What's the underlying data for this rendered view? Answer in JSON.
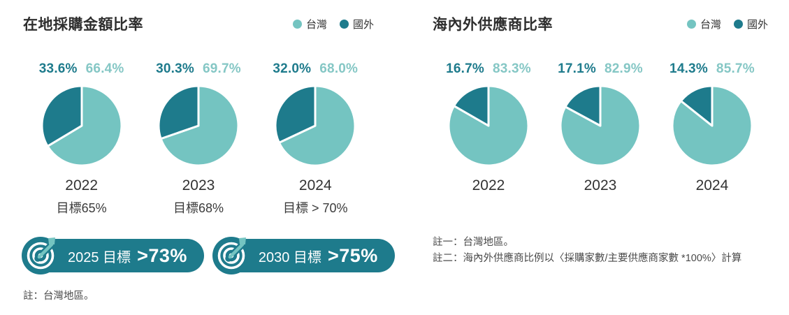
{
  "colors": {
    "taiwan": "#74c4c1",
    "foreign": "#1e7b8c",
    "taiwan_text": "#85c7c5",
    "foreign_text": "#1e7b8c",
    "badge_bg": "#1e7b8c",
    "dart": "#74c4c1",
    "pie_gap": "#ffffff"
  },
  "chart_data": [
    {
      "type": "pie",
      "title": "在地採購金額比率",
      "legend": [
        {
          "label": "台灣",
          "color": "#74c4c1"
        },
        {
          "label": "國外",
          "color": "#1e7b8c"
        }
      ],
      "legend_position": "top-right",
      "charts": [
        {
          "year": "2022",
          "slices": [
            {
              "name": "台灣",
              "value": 66.4,
              "label": "66.4%"
            },
            {
              "name": "國外",
              "value": 33.6,
              "label": "33.6%"
            }
          ],
          "target": "目標65%"
        },
        {
          "year": "2023",
          "slices": [
            {
              "name": "台灣",
              "value": 69.7,
              "label": "69.7%"
            },
            {
              "name": "國外",
              "value": 30.3,
              "label": "30.3%"
            }
          ],
          "target": "目標68%"
        },
        {
          "year": "2024",
          "slices": [
            {
              "name": "台灣",
              "value": 68.0,
              "label": "68.0%"
            },
            {
              "name": "國外",
              "value": 32.0,
              "label": "32.0%"
            }
          ],
          "target": "目標 > 70%"
        }
      ],
      "future_targets": [
        {
          "prefix": "2025 目標",
          "value": ">73%"
        },
        {
          "prefix": "2030 目標",
          "value": ">75%"
        }
      ],
      "note": "註：台灣地區。"
    },
    {
      "type": "pie",
      "title": "海內外供應商比率",
      "legend": [
        {
          "label": "台灣",
          "color": "#74c4c1"
        },
        {
          "label": "國外",
          "color": "#1e7b8c"
        }
      ],
      "legend_position": "top-right",
      "charts": [
        {
          "year": "2022",
          "slices": [
            {
              "name": "台灣",
              "value": 83.3,
              "label": "83.3%"
            },
            {
              "name": "國外",
              "value": 16.7,
              "label": "16.7%"
            }
          ]
        },
        {
          "year": "2023",
          "slices": [
            {
              "name": "台灣",
              "value": 82.9,
              "label": "82.9%"
            },
            {
              "name": "國外",
              "value": 17.1,
              "label": "17.1%"
            }
          ]
        },
        {
          "year": "2024",
          "slices": [
            {
              "name": "台灣",
              "value": 85.7,
              "label": "85.7%"
            },
            {
              "name": "國外",
              "value": 14.3,
              "label": "14.3%"
            }
          ]
        }
      ],
      "notes": [
        "註一：台灣地區。",
        "註二：海內外供應商比例以〈採購家數/主要供應商家數 *100%〉計算"
      ]
    }
  ]
}
